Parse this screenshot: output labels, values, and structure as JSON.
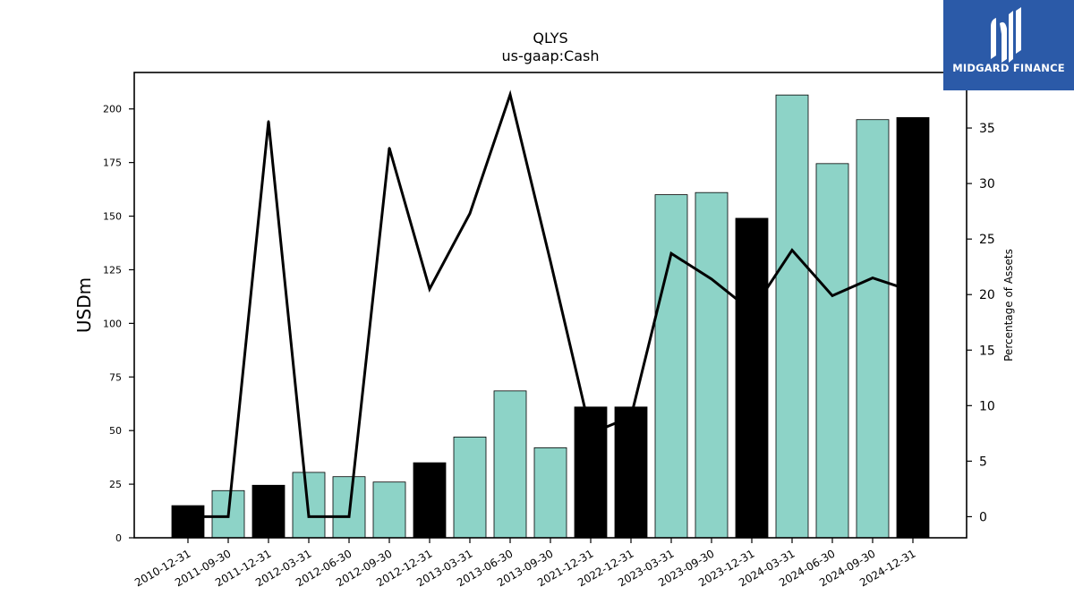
{
  "chart_data": {
    "type": "bar",
    "title": "QLYS",
    "subtitle": "us-gaap:Cash",
    "ylabel": "USDm",
    "y2label": "Percentage of Assets",
    "ylim": [
      0,
      217
    ],
    "y2lim": [
      -1.9,
      40.0
    ],
    "yticks": [
      0,
      25,
      50,
      75,
      100,
      125,
      150,
      175,
      200
    ],
    "y2ticks": [
      0,
      5,
      10,
      15,
      20,
      25,
      30,
      35
    ],
    "categories": [
      "2010-12-31",
      "2011-09-30",
      "2011-12-31",
      "2012-03-31",
      "2012-06-30",
      "2012-09-30",
      "2012-12-31",
      "2013-03-31",
      "2013-06-30",
      "2013-09-30",
      "2021-12-31",
      "2022-12-31",
      "2023-03-31",
      "2023-09-30",
      "2023-12-31",
      "2024-03-31",
      "2024-06-30",
      "2024-09-30",
      "2024-12-31"
    ],
    "series": [
      {
        "kind": "bar",
        "values": [
          15.0,
          22.0,
          24.5,
          30.5,
          28.5,
          26.0,
          35.0,
          47.0,
          68.5,
          42.0,
          61.0,
          61.0,
          160.0,
          161.0,
          149.0,
          206.5,
          174.5,
          195.0,
          196.0
        ],
        "colors": [
          "#000000",
          "#8dd3c7",
          "#000000",
          "#8dd3c7",
          "#8dd3c7",
          "#8dd3c7",
          "#000000",
          "#8dd3c7",
          "#8dd3c7",
          "#8dd3c7",
          "#000000",
          "#000000",
          "#8dd3c7",
          "#8dd3c7",
          "#000000",
          "#8dd3c7",
          "#8dd3c7",
          "#8dd3c7",
          "#000000"
        ]
      },
      {
        "kind": "line",
        "axis": "right",
        "color": "#000000",
        "values": [
          0.0,
          0.0,
          35.6,
          0.0,
          0.0,
          33.2,
          20.5,
          27.3,
          38.0,
          23.0,
          7.5,
          9.0,
          23.7,
          21.4,
          18.5,
          24.0,
          19.9,
          21.5,
          20.3
        ]
      }
    ],
    "legend": "none",
    "grid": false
  },
  "logo": {
    "name": "MIDGARD FINANCE",
    "bg": "#2b5aa8"
  }
}
